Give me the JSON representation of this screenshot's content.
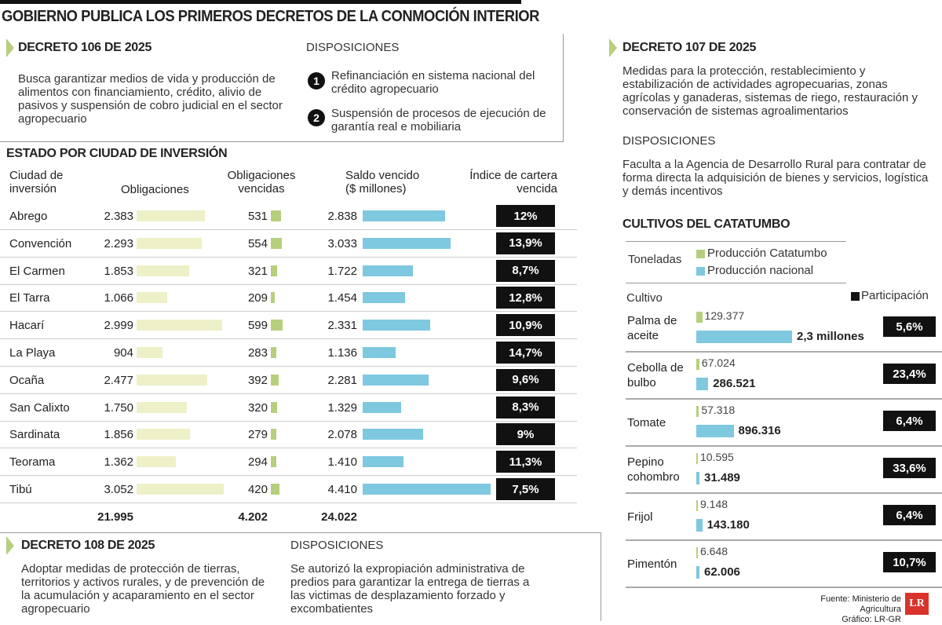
{
  "title": "GOBIERNO PUBLICA LOS PRIMEROS DECRETOS DE LA CONMOCIÓN INTERIOR",
  "decreto106": {
    "heading": "DECRETO 106 DE 2025",
    "body": "Busca garantizar medios de vida y producción de alimentos con financiamiento, crédito, alivio de pasivos y suspensión de cobro judicial en el sector agropecuario",
    "disp_heading": "DISPOSICIONES",
    "items": [
      {
        "n": "1",
        "text": "Refinanciación en sistema nacional del crédito agropecuario"
      },
      {
        "n": "2",
        "text": "Suspensión de procesos de ejecución de garantía real e mobiliaria"
      }
    ]
  },
  "decreto107": {
    "heading": "DECRETO 107 DE 2025",
    "body": "Medidas para la protección, restablecimiento y estabilización de actividades agropecuarias, zonas agrícolas y ganaderas, sistemas de riego, restauración y conservación de sistemas agroalimentarios",
    "disp_heading": "DISPOSICIONES",
    "disp_body": "Faculta a la Agencia de Desarrollo Rural para contratar de forma directa la adquisición de bienes y servicios, logística y demás incentivos"
  },
  "decreto108": {
    "heading": "DECRETO 108 DE 2025",
    "body": "Adoptar medidas de protección de tierras, territorios y activos rurales, y de prevención de la acumulación y acaparamiento en el sector agropecuario",
    "disp_heading": "DISPOSICIONES",
    "disp_body": "Se autorizó la expropiación administrativa de predios para garantizar la entrega de tierras a las victimas de desplazamiento forzado y excombatientes"
  },
  "colors": {
    "obligaciones": "#eef0c8",
    "vencidas": "#b7cf7c",
    "saldo": "#7ec8e0",
    "catatumbo": "#b7cf7c",
    "nacional": "#7ec8e0",
    "index_bg": "#111111",
    "logo": "#d9332b"
  },
  "chart_data": [
    {
      "type": "table",
      "title": "ESTADO POR CIUDAD DE INVERSIÓN",
      "columns": [
        "Ciudad de inversión",
        "Obligaciones",
        "Obligaciones vencidas",
        "Saldo vencido ($ millones)",
        "Índice de cartera vencida"
      ],
      "rows": [
        {
          "city": "Abrego",
          "obl": 2383,
          "obl_l": "2.383",
          "ven": 531,
          "ven_l": "531",
          "saldo": 2838,
          "saldo_l": "2.838",
          "idx": "12%"
        },
        {
          "city": "Convención",
          "obl": 2293,
          "obl_l": "2.293",
          "ven": 554,
          "ven_l": "554",
          "saldo": 3033,
          "saldo_l": "3.033",
          "idx": "13,9%"
        },
        {
          "city": "El Carmen",
          "obl": 1853,
          "obl_l": "1.853",
          "ven": 321,
          "ven_l": "321",
          "saldo": 1722,
          "saldo_l": "1.722",
          "idx": "8,7%"
        },
        {
          "city": "El Tarra",
          "obl": 1066,
          "obl_l": "1.066",
          "ven": 209,
          "ven_l": "209",
          "saldo": 1454,
          "saldo_l": "1.454",
          "idx": "12,8%"
        },
        {
          "city": "Hacarí",
          "obl": 2999,
          "obl_l": "2.999",
          "ven": 599,
          "ven_l": "599",
          "saldo": 2331,
          "saldo_l": "2.331",
          "idx": "10,9%"
        },
        {
          "city": "La Playa",
          "obl": 904,
          "obl_l": "904",
          "ven": 283,
          "ven_l": "283",
          "saldo": 1136,
          "saldo_l": "1.136",
          "idx": "14,7%"
        },
        {
          "city": "Ocaña",
          "obl": 2477,
          "obl_l": "2.477",
          "ven": 392,
          "ven_l": "392",
          "saldo": 2281,
          "saldo_l": "2.281",
          "idx": "9,6%"
        },
        {
          "city": "San Calixto",
          "obl": 1750,
          "obl_l": "1.750",
          "ven": 320,
          "ven_l": "320",
          "saldo": 1329,
          "saldo_l": "1.329",
          "idx": "8,3%"
        },
        {
          "city": "Sardinata",
          "obl": 1856,
          "obl_l": "1.856",
          "ven": 279,
          "ven_l": "279",
          "saldo": 2078,
          "saldo_l": "2.078",
          "idx": "9%"
        },
        {
          "city": "Teorama",
          "obl": 1362,
          "obl_l": "1.362",
          "ven": 294,
          "ven_l": "294",
          "saldo": 1410,
          "saldo_l": "1.410",
          "idx": "11,3%"
        },
        {
          "city": "Tibú",
          "obl": 3052,
          "obl_l": "3.052",
          "ven": 420,
          "ven_l": "420",
          "saldo": 4410,
          "saldo_l": "4.410",
          "idx": "7,5%"
        }
      ],
      "totals": {
        "obl": "21.995",
        "ven": "4.202",
        "saldo": "24.022"
      }
    },
    {
      "type": "bar",
      "title": "CULTIVOS DEL CATATUMBO",
      "unit_label": "Toneladas",
      "category_label": "Cultivo",
      "participation_label": "Participación",
      "series": [
        {
          "name": "Producción Catatumbo"
        },
        {
          "name": "Producción nacional"
        }
      ],
      "rows": [
        {
          "crop": "Palma de aceite",
          "cat": 129377,
          "cat_l": "129.377",
          "nac": 2300000,
          "nac_l": "2,3 millones",
          "part": "5,6%"
        },
        {
          "crop": "Cebolla de bulbo",
          "cat": 67024,
          "cat_l": "67.024",
          "nac": 286521,
          "nac_l": "286.521",
          "part": "23,4%"
        },
        {
          "crop": "Tomate",
          "cat": 57318,
          "cat_l": "57.318",
          "nac": 896316,
          "nac_l": "896.316",
          "part": "6,4%"
        },
        {
          "crop": "Pepino cohombro",
          "cat": 10595,
          "cat_l": "10.595",
          "nac": 31489,
          "nac_l": "31.489",
          "part": "33,6%"
        },
        {
          "crop": "Frijol",
          "cat": 9148,
          "cat_l": "9.148",
          "nac": 143180,
          "nac_l": "143.180",
          "part": "6,4%"
        },
        {
          "crop": "Pimentón",
          "cat": 6648,
          "cat_l": "6.648",
          "nac": 62006,
          "nac_l": "62.006",
          "part": "10,7%"
        }
      ]
    }
  ],
  "footer": {
    "source": "Fuente:  Ministerio de Agricultura",
    "credit": "Gráfico: LR-GR",
    "logo": "LR"
  }
}
